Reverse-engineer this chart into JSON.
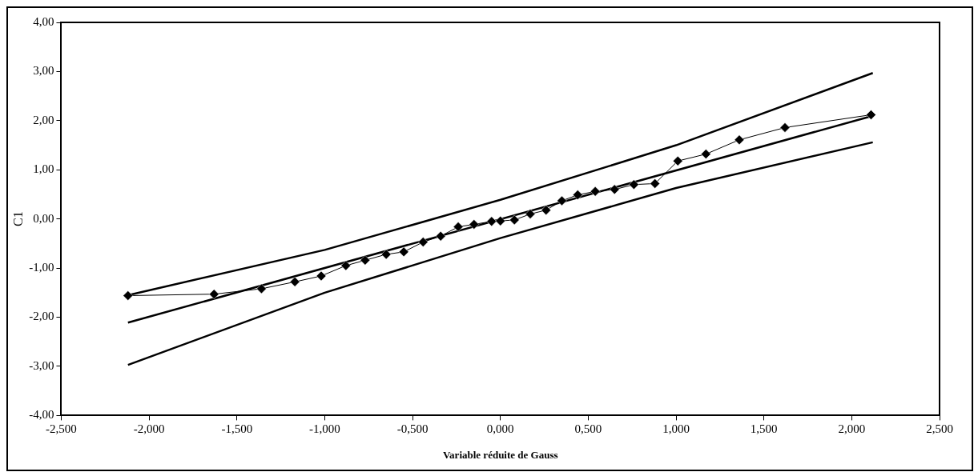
{
  "chart_data": {
    "type": "line",
    "xlabel": "Variable réduite de Gauss",
    "ylabel": "C1",
    "xlim": [
      -2.5,
      2.5
    ],
    "ylim": [
      -4,
      4
    ],
    "xticks": [
      {
        "value": -2.5,
        "label": "-2,500"
      },
      {
        "value": -2,
        "label": "-2,000"
      },
      {
        "value": -1.5,
        "label": "-1,500"
      },
      {
        "value": -1,
        "label": "-1,000"
      },
      {
        "value": -0.5,
        "label": "-0,500"
      },
      {
        "value": 0,
        "label": "0,000"
      },
      {
        "value": 0.5,
        "label": "0,500"
      },
      {
        "value": 1,
        "label": "1,000"
      },
      {
        "value": 1.5,
        "label": "1,500"
      },
      {
        "value": 2,
        "label": "2,000"
      },
      {
        "value": 2.5,
        "label": "2,500"
      }
    ],
    "yticks": [
      {
        "value": -4,
        "label": "-4,00"
      },
      {
        "value": -3,
        "label": "-3,00"
      },
      {
        "value": -2,
        "label": "-2,00"
      },
      {
        "value": -1,
        "label": "-1,00"
      },
      {
        "value": 0,
        "label": "0,00"
      },
      {
        "value": 1,
        "label": "1,00"
      },
      {
        "value": 2,
        "label": "2,00"
      },
      {
        "value": 3,
        "label": "3,00"
      },
      {
        "value": 4,
        "label": "4,00"
      }
    ],
    "grid": false,
    "legend": false,
    "series": [
      {
        "color": "#000000",
        "marker": "diamond",
        "line_style": "solid",
        "x": [
          -2.12,
          -1.63,
          -1.36,
          -1.17,
          -1.02,
          -0.88,
          -0.77,
          -0.65,
          -0.55,
          -0.44,
          -0.34,
          -0.24,
          -0.15,
          -0.05,
          0.0,
          0.08,
          0.17,
          0.26,
          0.35,
          0.44,
          0.54,
          0.65,
          0.76,
          0.88,
          1.01,
          1.17,
          1.36,
          1.62,
          2.11
        ],
        "values": [
          -1.56,
          -1.53,
          -1.42,
          -1.28,
          -1.16,
          -0.95,
          -0.84,
          -0.72,
          -0.67,
          -0.47,
          -0.35,
          -0.16,
          -0.11,
          -0.05,
          -0.04,
          -0.02,
          0.1,
          0.18,
          0.37,
          0.49,
          0.56,
          0.6,
          0.7,
          0.72,
          1.18,
          1.32,
          1.61,
          1.86,
          2.12
        ]
      },
      {
        "color": "#000000",
        "marker": "none",
        "line_style": "solid",
        "x": [
          -2.12,
          2.12
        ],
        "values": [
          -2.11,
          2.1
        ]
      },
      {
        "color": "#000000",
        "marker": "none",
        "line_style": "solid",
        "x": [
          -2.12,
          -1,
          0,
          1,
          2.12
        ],
        "values": [
          -1.55,
          -0.63,
          0.39,
          1.5,
          2.97
        ]
      },
      {
        "color": "#000000",
        "marker": "none",
        "line_style": "solid",
        "x": [
          -2.12,
          -1,
          0,
          1,
          2.12
        ],
        "values": [
          -2.97,
          -1.5,
          -0.39,
          0.63,
          1.56
        ]
      }
    ]
  }
}
